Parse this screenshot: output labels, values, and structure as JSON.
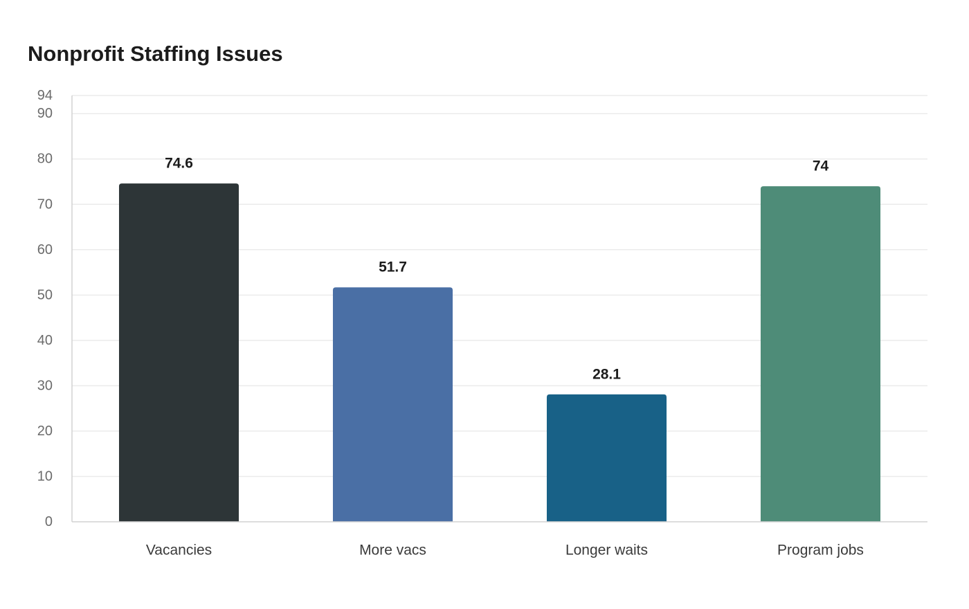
{
  "chart_data": {
    "type": "bar",
    "title": "Nonprofit Staffing Issues",
    "xlabel": "",
    "ylabel": "",
    "categories": [
      "Vacancies",
      "More vacs",
      "Longer waits",
      "Program jobs"
    ],
    "values": [
      74.6,
      51.7,
      28.1,
      74
    ],
    "value_labels": [
      "74.6",
      "51.7",
      "28.1",
      "74"
    ],
    "colors": [
      "#2d3537",
      "#4a6fa5",
      "#186187",
      "#4e8c78"
    ],
    "ylim": [
      0,
      94
    ],
    "yticks": [
      0,
      10,
      20,
      30,
      40,
      50,
      60,
      70,
      80,
      90,
      94
    ],
    "grid": true,
    "legend": "none"
  }
}
